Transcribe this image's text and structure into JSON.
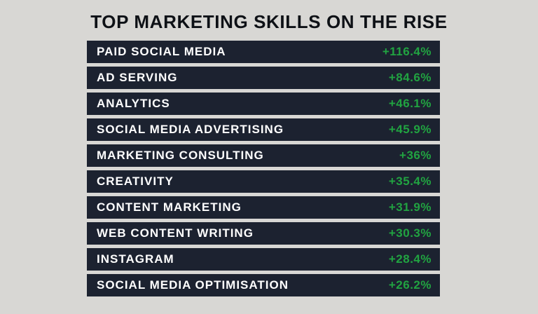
{
  "title": "TOP MARKETING SKILLS ON THE RISE",
  "colors": {
    "background": "#d8d7d4",
    "row_background": "#1c2230",
    "label_text": "#ffffff",
    "value_text": "#21a341",
    "title_text": "#0e1116"
  },
  "chart_data": {
    "type": "table",
    "title": "TOP MARKETING SKILLS ON THE RISE",
    "description": "Ranked list of marketing skills by percentage growth",
    "categories": [
      "PAID SOCIAL MEDIA",
      "AD SERVING",
      "ANALYTICS",
      "SOCIAL MEDIA ADVERTISING",
      "MARKETING CONSULTING",
      "CREATIVITY",
      "CONTENT MARKETING",
      "WEB CONTENT WRITING",
      "INSTAGRAM",
      "SOCIAL MEDIA OPTIMISATION"
    ],
    "values": [
      116.4,
      84.6,
      46.1,
      45.9,
      36,
      35.4,
      31.9,
      30.3,
      28.4,
      26.2
    ],
    "value_labels": [
      "+116.4%",
      "+84.6%",
      "+46.1%",
      "+45.9%",
      "+36%",
      "+35.4%",
      "+31.9%",
      "+30.3%",
      "+28.4%",
      "+26.2%"
    ],
    "value_unit": "percent increase",
    "legend": "none",
    "grid": false
  }
}
